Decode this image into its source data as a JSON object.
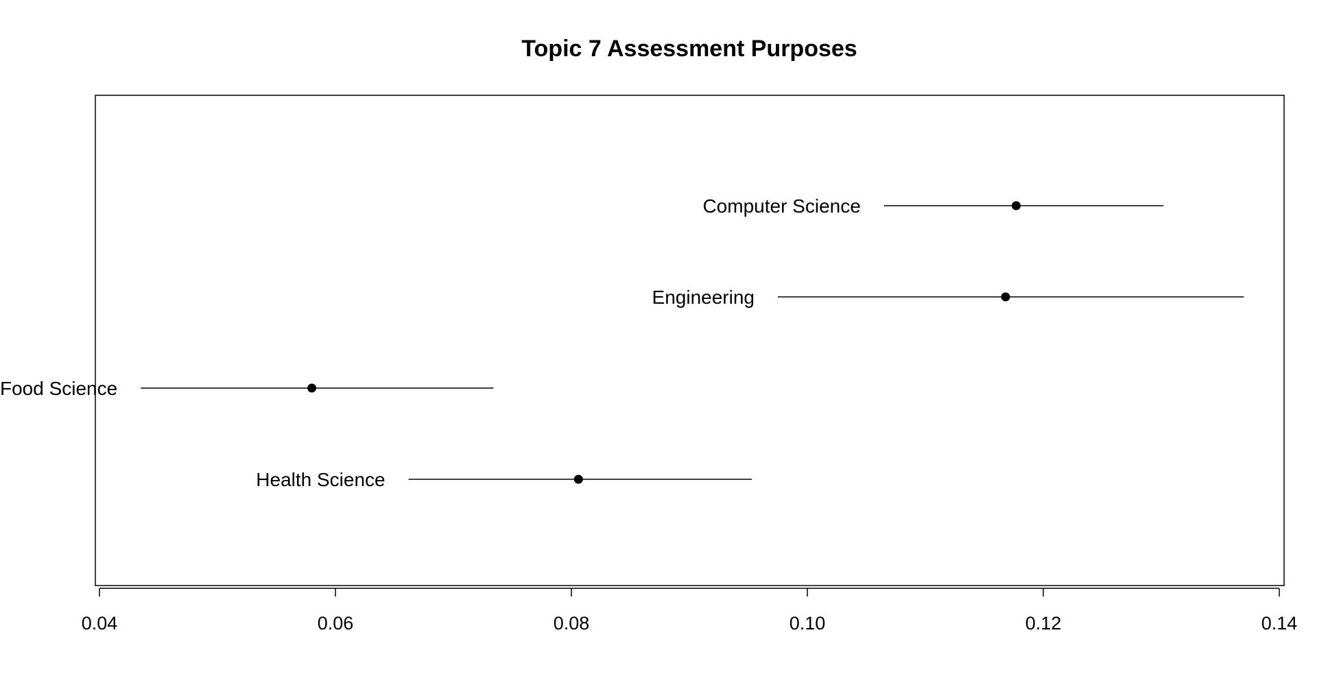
{
  "chart_data": {
    "type": "scatter",
    "title": "Topic 7 Assessment Purposes",
    "xlabel": "",
    "ylabel": "",
    "xlim": [
      0.04,
      0.14
    ],
    "x_ticks": [
      0.04,
      0.06,
      0.08,
      0.1,
      0.12,
      0.14
    ],
    "x_tick_labels": [
      "0.04",
      "0.06",
      "0.08",
      "0.10",
      "0.12",
      "0.14"
    ],
    "grid": false,
    "legend": "none",
    "point_color": "#000000",
    "points": [
      {
        "label": "Computer Science",
        "estimate": 0.1177,
        "lower": 0.1065,
        "upper": 0.1302
      },
      {
        "label": "Engineering",
        "estimate": 0.1168,
        "lower": 0.0975,
        "upper": 0.137
      },
      {
        "label": "Food Science",
        "estimate": 0.058,
        "lower": 0.0435,
        "upper": 0.0734
      },
      {
        "label": "Health Science",
        "estimate": 0.0806,
        "lower": 0.0662,
        "upper": 0.0953
      }
    ]
  }
}
